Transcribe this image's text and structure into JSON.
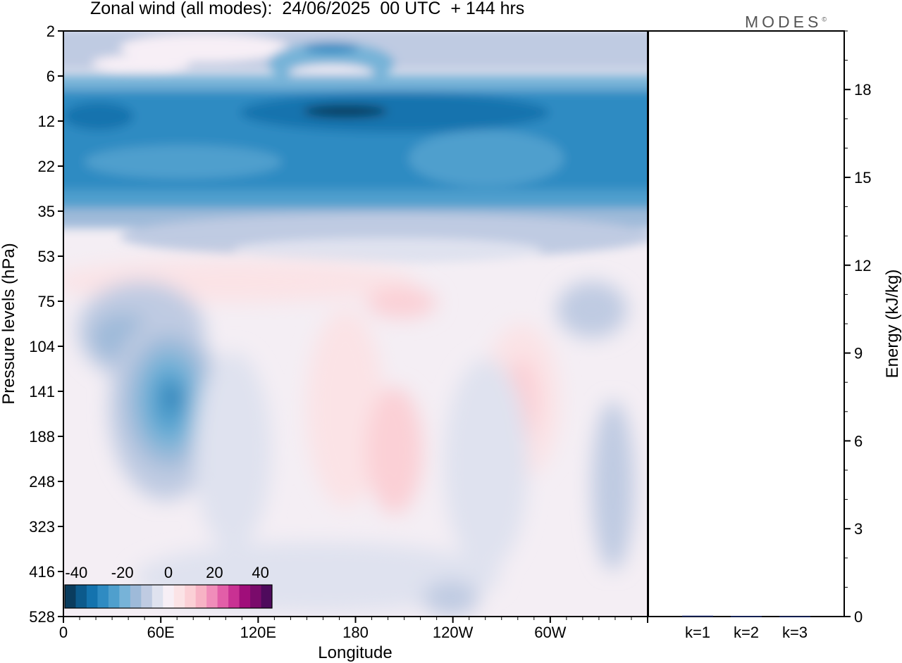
{
  "title": "Zonal wind (all modes):  24/06/2025  00 UTC  + 144 hrs",
  "logo": "MODES",
  "logo_mark": "©",
  "colors": {
    "background": "#f4eef4",
    "scale": [
      "#0a3c5e",
      "#0c5a8c",
      "#1473ae",
      "#2f8bc2",
      "#4f9fcd",
      "#77b3d8",
      "#9ebad9",
      "#bfcbe2",
      "#dfe2ef",
      "#f7eff6",
      "#fbe3e6",
      "#fbd0d6",
      "#f7b3c5",
      "#f08dba",
      "#e25ea8",
      "#c93193",
      "#a00e7a",
      "#7a0b6b",
      "#4e0a5c"
    ]
  },
  "chart_data": [
    {
      "type": "heatmap",
      "title": "Zonal wind (all modes):  24/06/2025  00 UTC  + 144 hrs",
      "xlabel": "Longitude",
      "ylabel": "Pressure levels (hPa)",
      "x_ticks": [
        "0",
        "60E",
        "120E",
        "180",
        "120W",
        "60W"
      ],
      "x_tick_degrees": [
        0,
        60,
        120,
        180,
        240,
        300
      ],
      "xlim": [
        0,
        360
      ],
      "y_ticks": [
        "2",
        "6",
        "12",
        "22",
        "35",
        "53",
        "75",
        "104",
        "141",
        "188",
        "248",
        "323",
        "416",
        "528"
      ],
      "y_order": "top-to-bottom",
      "colorbar": {
        "ticks": [
          "-40",
          "-20",
          "0",
          "20",
          "40"
        ],
        "range": [
          -45,
          45
        ],
        "step": 5,
        "placement": "bottom-left inside plot"
      },
      "features": [
        {
          "lon": 45,
          "level": "141",
          "value": -30
        },
        {
          "lon": 180,
          "level": "12",
          "value": -35
        },
        {
          "lon": 60,
          "level": "22",
          "value": -25
        },
        {
          "lon": 180,
          "level": "6",
          "value": -5
        },
        {
          "lon": 285,
          "level": "141",
          "value": 5
        },
        {
          "lon": 200,
          "level": "188",
          "value": 5
        },
        {
          "lon": 330,
          "level": "75",
          "value": -10
        }
      ]
    },
    {
      "type": "bar",
      "categories": [
        "k=1",
        "k=2",
        "k=3"
      ],
      "values": [
        0.03,
        0.02,
        0.01
      ],
      "ylabel": "Energy (kJ/kg)",
      "ylim": [
        0,
        20
      ],
      "y_ticks": [
        "0",
        "3",
        "6",
        "9",
        "12",
        "15",
        "18"
      ],
      "bar_color": "#1a2a6c"
    }
  ]
}
